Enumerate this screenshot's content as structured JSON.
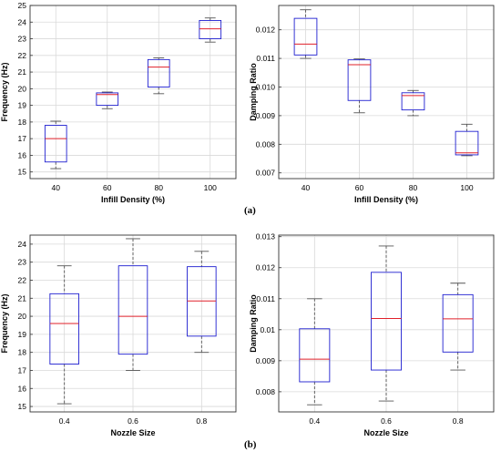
{
  "panel_labels": {
    "a": "(a)",
    "b": "(b)"
  },
  "colors": {
    "box": "#1f1fd0",
    "median": "#e0202a",
    "whisker": "#555555",
    "grid": "#d9d9d9",
    "axis": "#333333"
  },
  "chart_data": [
    {
      "type": "box",
      "xlabel": "Infill Density (%)",
      "ylabel": "Frequency (Hz)",
      "categories": [
        "40",
        "60",
        "80",
        "100"
      ],
      "ylim": [
        14.6,
        25
      ],
      "yticks": [
        15,
        16,
        17,
        18,
        19,
        20,
        21,
        22,
        23,
        24,
        25
      ],
      "ytick_labels": [
        "15",
        "16",
        "17",
        "18",
        "19",
        "20",
        "21",
        "22",
        "23",
        "24",
        "25"
      ],
      "boxes": [
        {
          "min": 15.2,
          "q1": 15.6,
          "median": 17.0,
          "q3": 17.8,
          "max": 18.05
        },
        {
          "min": 18.8,
          "q1": 19.0,
          "median": 19.65,
          "q3": 19.75,
          "max": 19.8
        },
        {
          "min": 19.7,
          "q1": 20.1,
          "median": 21.3,
          "q3": 21.75,
          "max": 21.85
        },
        {
          "min": 22.8,
          "q1": 23.0,
          "median": 23.6,
          "q3": 24.1,
          "max": 24.25
        }
      ]
    },
    {
      "type": "box",
      "xlabel": "Infill Density (%)",
      "ylabel": "Damping Ratio",
      "categories": [
        "40",
        "60",
        "80",
        "100"
      ],
      "ylim": [
        0.0068,
        0.01285
      ],
      "yticks": [
        0.007,
        0.008,
        0.009,
        0.01,
        0.011,
        0.012
      ],
      "ytick_labels": [
        "0.007",
        "0.008",
        "0.009",
        "0.010",
        "0.011",
        "0.012"
      ],
      "boxes": [
        {
          "min": 0.011,
          "q1": 0.01112,
          "median": 0.0115,
          "q3": 0.0124,
          "max": 0.0127
        },
        {
          "min": 0.0091,
          "q1": 0.00953,
          "median": 0.01078,
          "q3": 0.01095,
          "max": 0.01098
        },
        {
          "min": 0.009,
          "q1": 0.0092,
          "median": 0.0097,
          "q3": 0.0098,
          "max": 0.00988
        },
        {
          "min": 0.0076,
          "q1": 0.00763,
          "median": 0.0077,
          "q3": 0.00845,
          "max": 0.0087
        }
      ]
    },
    {
      "type": "box",
      "xlabel": "Nozzle Size",
      "ylabel": "Frequency (Hz)",
      "categories": [
        "0.4",
        "0.6",
        "0.8"
      ],
      "ylim": [
        14.7,
        24.5
      ],
      "yticks": [
        15,
        16,
        17,
        18,
        19,
        20,
        21,
        22,
        23,
        24
      ],
      "ytick_labels": [
        "15",
        "16",
        "17",
        "18",
        "19",
        "20",
        "21",
        "22",
        "23",
        "24"
      ],
      "boxes": [
        {
          "min": 15.15,
          "q1": 17.35,
          "median": 19.6,
          "q3": 21.25,
          "max": 22.8
        },
        {
          "min": 17.0,
          "q1": 17.9,
          "median": 20.0,
          "q3": 22.8,
          "max": 24.3
        },
        {
          "min": 18.0,
          "q1": 18.9,
          "median": 20.85,
          "q3": 22.75,
          "max": 23.6
        }
      ]
    },
    {
      "type": "box",
      "xlabel": "Nozzle Size",
      "ylabel": "Damping Ratio",
      "categories": [
        "0.4",
        "0.6",
        "0.8"
      ],
      "ylim": [
        0.00735,
        0.01305
      ],
      "yticks": [
        0.008,
        0.009,
        0.01,
        0.011,
        0.012,
        0.013
      ],
      "ytick_labels": [
        "0.008",
        "0.009",
        "0.01",
        "0.011",
        "0.012",
        "0.013"
      ],
      "boxes": [
        {
          "min": 0.00758,
          "q1": 0.00832,
          "median": 0.00905,
          "q3": 0.01003,
          "max": 0.011
        },
        {
          "min": 0.0077,
          "q1": 0.0087,
          "median": 0.01036,
          "q3": 0.01185,
          "max": 0.0127
        },
        {
          "min": 0.0087,
          "q1": 0.00928,
          "median": 0.01035,
          "q3": 0.01113,
          "max": 0.0115
        }
      ]
    }
  ]
}
